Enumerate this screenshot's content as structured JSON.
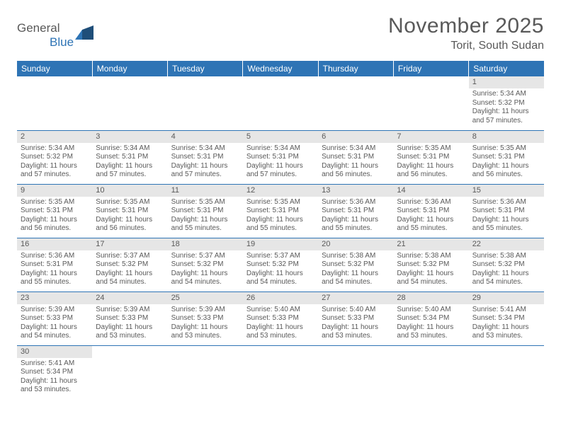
{
  "brand": {
    "part1": "General",
    "part2": "Blue"
  },
  "title": "November 2025",
  "location": "Torit, South Sudan",
  "day_headers": [
    "Sunday",
    "Monday",
    "Tuesday",
    "Wednesday",
    "Thursday",
    "Friday",
    "Saturday"
  ],
  "colors": {
    "header_bg": "#2e74b5",
    "header_fg": "#ffffff",
    "daynum_bg": "#e6e6e6",
    "cell_border": "#2e74b5",
    "text": "#595959"
  },
  "weeks": [
    [
      {
        "n": "",
        "sr": "",
        "ss": "",
        "dl": ""
      },
      {
        "n": "",
        "sr": "",
        "ss": "",
        "dl": ""
      },
      {
        "n": "",
        "sr": "",
        "ss": "",
        "dl": ""
      },
      {
        "n": "",
        "sr": "",
        "ss": "",
        "dl": ""
      },
      {
        "n": "",
        "sr": "",
        "ss": "",
        "dl": ""
      },
      {
        "n": "",
        "sr": "",
        "ss": "",
        "dl": ""
      },
      {
        "n": "1",
        "sr": "Sunrise: 5:34 AM",
        "ss": "Sunset: 5:32 PM",
        "dl": "Daylight: 11 hours and 57 minutes."
      }
    ],
    [
      {
        "n": "2",
        "sr": "Sunrise: 5:34 AM",
        "ss": "Sunset: 5:32 PM",
        "dl": "Daylight: 11 hours and 57 minutes."
      },
      {
        "n": "3",
        "sr": "Sunrise: 5:34 AM",
        "ss": "Sunset: 5:31 PM",
        "dl": "Daylight: 11 hours and 57 minutes."
      },
      {
        "n": "4",
        "sr": "Sunrise: 5:34 AM",
        "ss": "Sunset: 5:31 PM",
        "dl": "Daylight: 11 hours and 57 minutes."
      },
      {
        "n": "5",
        "sr": "Sunrise: 5:34 AM",
        "ss": "Sunset: 5:31 PM",
        "dl": "Daylight: 11 hours and 57 minutes."
      },
      {
        "n": "6",
        "sr": "Sunrise: 5:34 AM",
        "ss": "Sunset: 5:31 PM",
        "dl": "Daylight: 11 hours and 56 minutes."
      },
      {
        "n": "7",
        "sr": "Sunrise: 5:35 AM",
        "ss": "Sunset: 5:31 PM",
        "dl": "Daylight: 11 hours and 56 minutes."
      },
      {
        "n": "8",
        "sr": "Sunrise: 5:35 AM",
        "ss": "Sunset: 5:31 PM",
        "dl": "Daylight: 11 hours and 56 minutes."
      }
    ],
    [
      {
        "n": "9",
        "sr": "Sunrise: 5:35 AM",
        "ss": "Sunset: 5:31 PM",
        "dl": "Daylight: 11 hours and 56 minutes."
      },
      {
        "n": "10",
        "sr": "Sunrise: 5:35 AM",
        "ss": "Sunset: 5:31 PM",
        "dl": "Daylight: 11 hours and 56 minutes."
      },
      {
        "n": "11",
        "sr": "Sunrise: 5:35 AM",
        "ss": "Sunset: 5:31 PM",
        "dl": "Daylight: 11 hours and 55 minutes."
      },
      {
        "n": "12",
        "sr": "Sunrise: 5:35 AM",
        "ss": "Sunset: 5:31 PM",
        "dl": "Daylight: 11 hours and 55 minutes."
      },
      {
        "n": "13",
        "sr": "Sunrise: 5:36 AM",
        "ss": "Sunset: 5:31 PM",
        "dl": "Daylight: 11 hours and 55 minutes."
      },
      {
        "n": "14",
        "sr": "Sunrise: 5:36 AM",
        "ss": "Sunset: 5:31 PM",
        "dl": "Daylight: 11 hours and 55 minutes."
      },
      {
        "n": "15",
        "sr": "Sunrise: 5:36 AM",
        "ss": "Sunset: 5:31 PM",
        "dl": "Daylight: 11 hours and 55 minutes."
      }
    ],
    [
      {
        "n": "16",
        "sr": "Sunrise: 5:36 AM",
        "ss": "Sunset: 5:31 PM",
        "dl": "Daylight: 11 hours and 55 minutes."
      },
      {
        "n": "17",
        "sr": "Sunrise: 5:37 AM",
        "ss": "Sunset: 5:32 PM",
        "dl": "Daylight: 11 hours and 54 minutes."
      },
      {
        "n": "18",
        "sr": "Sunrise: 5:37 AM",
        "ss": "Sunset: 5:32 PM",
        "dl": "Daylight: 11 hours and 54 minutes."
      },
      {
        "n": "19",
        "sr": "Sunrise: 5:37 AM",
        "ss": "Sunset: 5:32 PM",
        "dl": "Daylight: 11 hours and 54 minutes."
      },
      {
        "n": "20",
        "sr": "Sunrise: 5:38 AM",
        "ss": "Sunset: 5:32 PM",
        "dl": "Daylight: 11 hours and 54 minutes."
      },
      {
        "n": "21",
        "sr": "Sunrise: 5:38 AM",
        "ss": "Sunset: 5:32 PM",
        "dl": "Daylight: 11 hours and 54 minutes."
      },
      {
        "n": "22",
        "sr": "Sunrise: 5:38 AM",
        "ss": "Sunset: 5:32 PM",
        "dl": "Daylight: 11 hours and 54 minutes."
      }
    ],
    [
      {
        "n": "23",
        "sr": "Sunrise: 5:39 AM",
        "ss": "Sunset: 5:33 PM",
        "dl": "Daylight: 11 hours and 54 minutes."
      },
      {
        "n": "24",
        "sr": "Sunrise: 5:39 AM",
        "ss": "Sunset: 5:33 PM",
        "dl": "Daylight: 11 hours and 53 minutes."
      },
      {
        "n": "25",
        "sr": "Sunrise: 5:39 AM",
        "ss": "Sunset: 5:33 PM",
        "dl": "Daylight: 11 hours and 53 minutes."
      },
      {
        "n": "26",
        "sr": "Sunrise: 5:40 AM",
        "ss": "Sunset: 5:33 PM",
        "dl": "Daylight: 11 hours and 53 minutes."
      },
      {
        "n": "27",
        "sr": "Sunrise: 5:40 AM",
        "ss": "Sunset: 5:33 PM",
        "dl": "Daylight: 11 hours and 53 minutes."
      },
      {
        "n": "28",
        "sr": "Sunrise: 5:40 AM",
        "ss": "Sunset: 5:34 PM",
        "dl": "Daylight: 11 hours and 53 minutes."
      },
      {
        "n": "29",
        "sr": "Sunrise: 5:41 AM",
        "ss": "Sunset: 5:34 PM",
        "dl": "Daylight: 11 hours and 53 minutes."
      }
    ],
    [
      {
        "n": "30",
        "sr": "Sunrise: 5:41 AM",
        "ss": "Sunset: 5:34 PM",
        "dl": "Daylight: 11 hours and 53 minutes."
      },
      {
        "n": "",
        "sr": "",
        "ss": "",
        "dl": ""
      },
      {
        "n": "",
        "sr": "",
        "ss": "",
        "dl": ""
      },
      {
        "n": "",
        "sr": "",
        "ss": "",
        "dl": ""
      },
      {
        "n": "",
        "sr": "",
        "ss": "",
        "dl": ""
      },
      {
        "n": "",
        "sr": "",
        "ss": "",
        "dl": ""
      },
      {
        "n": "",
        "sr": "",
        "ss": "",
        "dl": ""
      }
    ]
  ]
}
